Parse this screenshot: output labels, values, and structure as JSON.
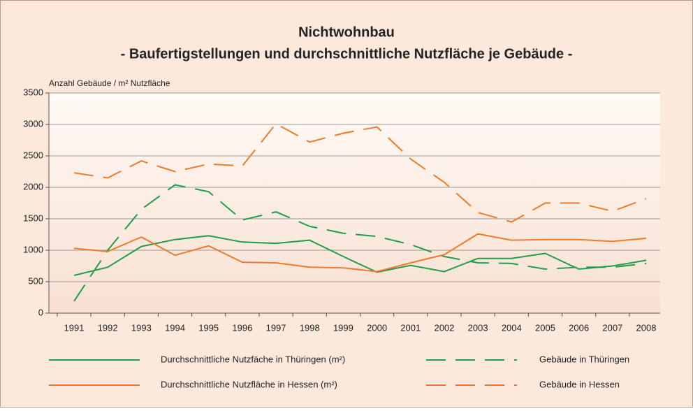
{
  "chart_data": {
    "type": "line",
    "title": "Nichtwohnbau",
    "subtitle": "- Baufertigstellungen und durchschnittliche Nutzfläche je Gebäude -",
    "y_label": "Anzahl Gebäude / m² Nutzfläche",
    "categories": [
      "1991",
      "1992",
      "1993",
      "1994",
      "1995",
      "1996",
      "1997",
      "1998",
      "1999",
      "2000",
      "2001",
      "2002",
      "2003",
      "2004",
      "2005",
      "2006",
      "2007",
      "2008"
    ],
    "series": [
      {
        "name": "Durchschnittliche Nutzfäche in Thüringen (m²)",
        "color": "#1e9e4a",
        "dashed": false,
        "values": [
          600,
          730,
          1060,
          1170,
          1230,
          1130,
          1110,
          1160,
          900,
          650,
          760,
          660,
          870,
          870,
          950,
          700,
          750,
          840
        ]
      },
      {
        "name": "Gebäude in Thüringen",
        "color": "#1e9e4a",
        "dashed": true,
        "values": [
          190,
          1000,
          1650,
          2040,
          1930,
          1480,
          1610,
          1380,
          1270,
          1220,
          1090,
          900,
          800,
          790,
          700,
          730,
          730,
          790
        ]
      },
      {
        "name": "Durchschnittliche Nutzfläche in Hessen (m²)",
        "color": "#f07a2a",
        "dashed": false,
        "values": [
          1030,
          980,
          1210,
          920,
          1070,
          810,
          800,
          730,
          720,
          660,
          800,
          930,
          1260,
          1160,
          1170,
          1170,
          1140,
          1190
        ]
      },
      {
        "name": "Gebäude in Hessen",
        "color": "#f07a2a",
        "dashed": true,
        "values": [
          2230,
          2150,
          2420,
          2250,
          2370,
          2340,
          3010,
          2720,
          2860,
          2960,
          2450,
          2080,
          1600,
          1450,
          1750,
          1750,
          1620,
          1820
        ]
      }
    ],
    "ylim": [
      0,
      3500
    ],
    "yticks": [
      0,
      500,
      1000,
      1500,
      2000,
      2500,
      3000,
      3500
    ],
    "grid": true
  }
}
